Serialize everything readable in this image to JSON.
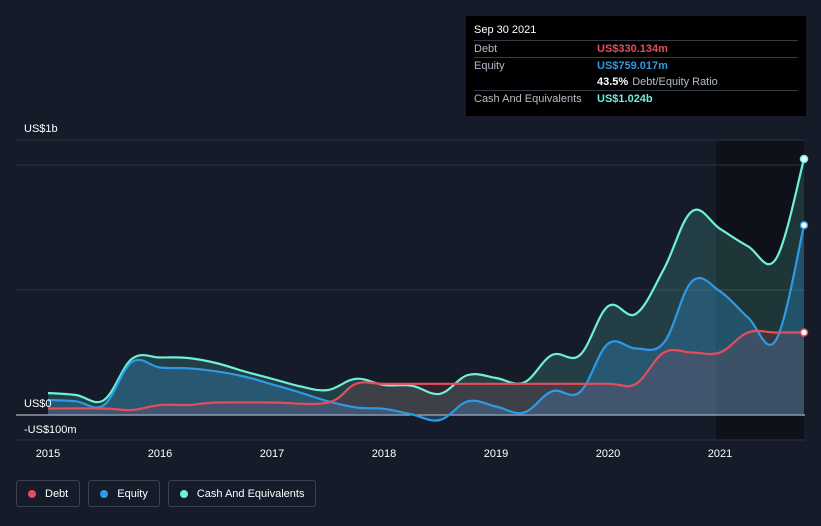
{
  "tooltip": {
    "date": "Sep 30 2021",
    "rows": [
      {
        "label": "Debt",
        "value": "US$330.134m",
        "color": "#e64d5a"
      },
      {
        "label": "Equity",
        "value": "US$759.017m",
        "color": "#2e9ae6"
      },
      {
        "label": "",
        "value": "43.5%",
        "extra": "Debt/Equity Ratio",
        "color": "#ffffff"
      },
      {
        "label": "Cash And Equivalents",
        "value": "US$1.024b",
        "color": "#6ef0d7"
      }
    ]
  },
  "legend": [
    {
      "label": "Debt",
      "color": "#e64d5a"
    },
    {
      "label": "Equity",
      "color": "#2e9ae6"
    },
    {
      "label": "Cash And Equivalents",
      "color": "#6ef0d7"
    }
  ],
  "chart_data": {
    "type": "area",
    "x_tick_labels": [
      "2015",
      "2016",
      "2017",
      "2018",
      "2019",
      "2020",
      "2021"
    ],
    "x_ticks": [
      2015,
      2016,
      2017,
      2018,
      2019,
      2020,
      2021
    ],
    "xlim": [
      2015,
      2021.75
    ],
    "ylim": [
      -100,
      1000
    ],
    "y_tick_labels": [
      {
        "value": 1000,
        "label": "US$1b"
      },
      {
        "value": 0,
        "label": "US$0"
      },
      {
        "value": -100,
        "label": "-US$100m"
      }
    ],
    "grid": true,
    "legend_position": "bottom-left",
    "series": [
      {
        "name": "Debt",
        "color": "#e64d5a",
        "points": [
          [
            2015,
            26
          ],
          [
            2015.5,
            26
          ],
          [
            2015.75,
            20
          ],
          [
            2016,
            40
          ],
          [
            2016.25,
            40
          ],
          [
            2016.5,
            50
          ],
          [
            2017,
            50
          ],
          [
            2017.5,
            50
          ],
          [
            2017.75,
            125
          ],
          [
            2018,
            125
          ],
          [
            2018.5,
            125
          ],
          [
            2019,
            125
          ],
          [
            2019.25,
            125
          ],
          [
            2019.5,
            125
          ],
          [
            2020,
            125
          ],
          [
            2020.25,
            125
          ],
          [
            2020.5,
            250
          ],
          [
            2020.75,
            250
          ],
          [
            2021,
            250
          ],
          [
            2021.25,
            330
          ],
          [
            2021.5,
            330
          ],
          [
            2021.75,
            330
          ]
        ]
      },
      {
        "name": "Equity",
        "color": "#2e9ae6",
        "points": [
          [
            2015,
            60
          ],
          [
            2015.25,
            55
          ],
          [
            2015.5,
            40
          ],
          [
            2015.75,
            212
          ],
          [
            2016,
            190
          ],
          [
            2016.25,
            187
          ],
          [
            2016.5,
            175
          ],
          [
            2016.75,
            154
          ],
          [
            2017,
            123
          ],
          [
            2017.25,
            90
          ],
          [
            2017.5,
            55
          ],
          [
            2017.75,
            30
          ],
          [
            2018,
            25
          ],
          [
            2018.25,
            2
          ],
          [
            2018.5,
            -20
          ],
          [
            2018.75,
            55
          ],
          [
            2019,
            34
          ],
          [
            2019.25,
            10
          ],
          [
            2019.5,
            95
          ],
          [
            2019.75,
            92
          ],
          [
            2020,
            285
          ],
          [
            2020.25,
            266
          ],
          [
            2020.5,
            290
          ],
          [
            2020.75,
            535
          ],
          [
            2021,
            495
          ],
          [
            2021.25,
            390
          ],
          [
            2021.5,
            300
          ],
          [
            2021.75,
            759
          ]
        ]
      },
      {
        "name": "Cash And Equivalents",
        "color": "#6ef0d7",
        "points": [
          [
            2015,
            88
          ],
          [
            2015.25,
            80
          ],
          [
            2015.5,
            60
          ],
          [
            2015.75,
            225
          ],
          [
            2016,
            230
          ],
          [
            2016.25,
            228
          ],
          [
            2016.5,
            208
          ],
          [
            2016.75,
            175
          ],
          [
            2017,
            145
          ],
          [
            2017.25,
            115
          ],
          [
            2017.5,
            100
          ],
          [
            2017.75,
            145
          ],
          [
            2018,
            120
          ],
          [
            2018.25,
            117
          ],
          [
            2018.5,
            85
          ],
          [
            2018.75,
            160
          ],
          [
            2019,
            148
          ],
          [
            2019.25,
            130
          ],
          [
            2019.5,
            240
          ],
          [
            2019.75,
            240
          ],
          [
            2020,
            435
          ],
          [
            2020.25,
            405
          ],
          [
            2020.5,
            585
          ],
          [
            2020.75,
            815
          ],
          [
            2021,
            745
          ],
          [
            2021.25,
            675
          ],
          [
            2021.5,
            625
          ],
          [
            2021.75,
            1024
          ]
        ]
      }
    ]
  }
}
